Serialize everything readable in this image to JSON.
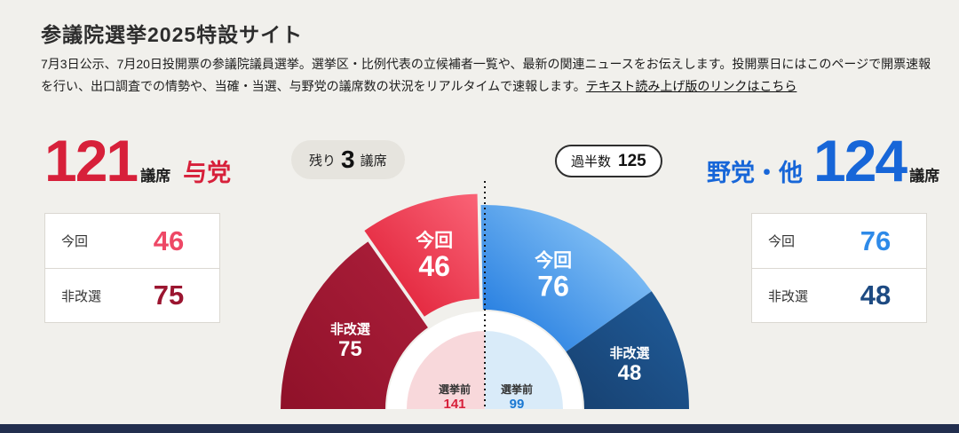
{
  "page": {
    "title": "参議院選挙2025特設サイト",
    "intro_text": "7月3日公示、7月20日投開票の参議院議員選挙。選挙区・比例代表の立候補者一覧や、最新の関連ニュースをお伝えします。投開票日にはこのページで開票速報を行い、出口調査での情勢や、当確・当選、与野党の議席数の状況をリアルタイムで速報します。",
    "readout_link": "テキスト読み上げ版のリンクはこちら"
  },
  "ruling": {
    "name": "与党",
    "total": "121",
    "seat_unit": "議席",
    "color": "#d7203a",
    "rows": [
      {
        "label": "今回",
        "value": "46",
        "color": "#ee4866"
      },
      {
        "label": "非改選",
        "value": "75",
        "color": "#9b1530"
      }
    ]
  },
  "opposition": {
    "name": "野党・他",
    "total": "124",
    "seat_unit": "議席",
    "color": "#1766d8",
    "rows": [
      {
        "label": "今回",
        "value": "76",
        "color": "#2e8ae8"
      },
      {
        "label": "非改選",
        "value": "48",
        "color": "#1d4a82"
      }
    ]
  },
  "badges": {
    "remaining_prefix": "残り",
    "remaining_value": "3",
    "remaining_suffix": "議席",
    "majority_label": "過半数",
    "majority_value": "125"
  },
  "chart_data": {
    "type": "pie",
    "shape": "half-donut",
    "total_seats": 245,
    "remaining_seats": 3,
    "majority": 125,
    "legend_position": "none",
    "segments": [
      {
        "group": "与党",
        "label": "非改選",
        "value": 75,
        "color": "#8f1129",
        "color2": "#ad1f3b",
        "text_color": "#ffffff",
        "exploded": false
      },
      {
        "group": "与党",
        "label": "今回",
        "value": 46,
        "color": "#dd1830",
        "color2": "#fa6477",
        "text_color": "#ffffff",
        "exploded": true
      },
      {
        "group": "野党・他",
        "label": "今回",
        "value": 76,
        "color": "#1673dd",
        "color2": "#9ed3fb",
        "text_color": "#ffffff",
        "exploded": false
      },
      {
        "group": "野党・他",
        "label": "非改選",
        "value": 48,
        "color": "#17406f",
        "color2": "#205d9c",
        "text_color": "#ffffff",
        "exploded": false
      }
    ],
    "pre_election": [
      {
        "label": "選挙前",
        "value": 141,
        "color": "#f8d8db",
        "value_color": "#d7203a"
      },
      {
        "label": "選挙前",
        "value": 99,
        "color": "#d9ebf9",
        "value_color": "#1a78d2"
      }
    ]
  }
}
